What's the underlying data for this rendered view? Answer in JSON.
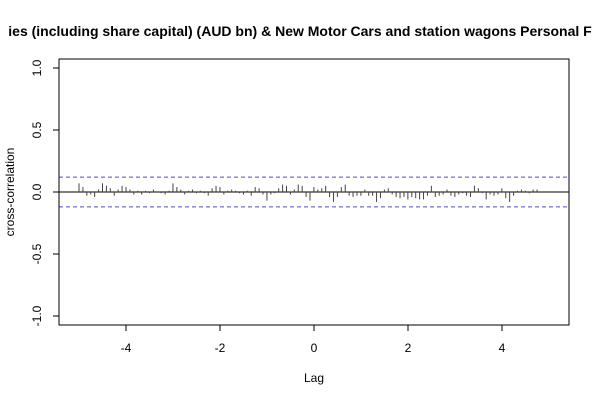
{
  "chart_data": {
    "type": "bar",
    "title": "ies (including share capital) (AUD bn)  & New Motor Cars and station wagons Personal F",
    "xlabel": "Lag",
    "ylabel": "cross-correlation",
    "xlim": [
      -5.2,
      5.2
    ],
    "ylim": [
      -1.0,
      1.0
    ],
    "xticks": [
      -4,
      -2,
      0,
      2,
      4
    ],
    "yticks": [
      -1.0,
      -0.5,
      0.0,
      0.5,
      1.0
    ],
    "xtick_labels": [
      "-4",
      "-2",
      "0",
      "2",
      "4"
    ],
    "ytick_labels": [
      "-1.0",
      "-0.5",
      "0.0",
      "0.5",
      "1.0"
    ],
    "ci_bounds": [
      0.12,
      -0.12
    ],
    "ci_color": "#4b4bd6",
    "grid": false,
    "lag_start": -5.0,
    "lag_step": 0.0833,
    "values": [
      0.07,
      0.04,
      -0.03,
      -0.02,
      -0.04,
      0.02,
      0.07,
      0.05,
      0.03,
      -0.03,
      0.02,
      0.05,
      0.04,
      0.02,
      -0.02,
      0.01,
      -0.02,
      0.01,
      -0.01,
      0.02,
      0.0,
      -0.01,
      -0.02,
      0.01,
      0.07,
      0.04,
      0.02,
      -0.02,
      0.01,
      0.02,
      -0.01,
      0.01,
      -0.01,
      -0.03,
      0.03,
      0.05,
      0.04,
      -0.02,
      0.01,
      0.02,
      0.01,
      -0.01,
      -0.02,
      0.01,
      -0.03,
      0.04,
      0.03,
      -0.02,
      -0.07,
      -0.02,
      -0.01,
      0.03,
      0.06,
      0.05,
      -0.02,
      0.02,
      0.06,
      0.05,
      -0.04,
      -0.07,
      0.04,
      0.02,
      0.03,
      0.05,
      -0.04,
      -0.08,
      -0.04,
      0.04,
      0.06,
      -0.03,
      -0.04,
      -0.03,
      -0.03,
      0.02,
      -0.03,
      -0.03,
      -0.08,
      -0.05,
      0.02,
      0.03,
      -0.02,
      -0.04,
      -0.05,
      -0.04,
      -0.06,
      -0.04,
      -0.05,
      -0.06,
      -0.06,
      -0.03,
      0.05,
      -0.04,
      -0.03,
      -0.02,
      0.02,
      -0.03,
      -0.04,
      -0.02,
      -0.01,
      -0.03,
      -0.04,
      0.05,
      0.03,
      -0.01,
      -0.06,
      -0.02,
      -0.03,
      -0.02,
      0.03,
      -0.05,
      -0.08,
      -0.03,
      0.01,
      0.02,
      0.01,
      -0.01,
      0.02,
      0.02
    ]
  }
}
